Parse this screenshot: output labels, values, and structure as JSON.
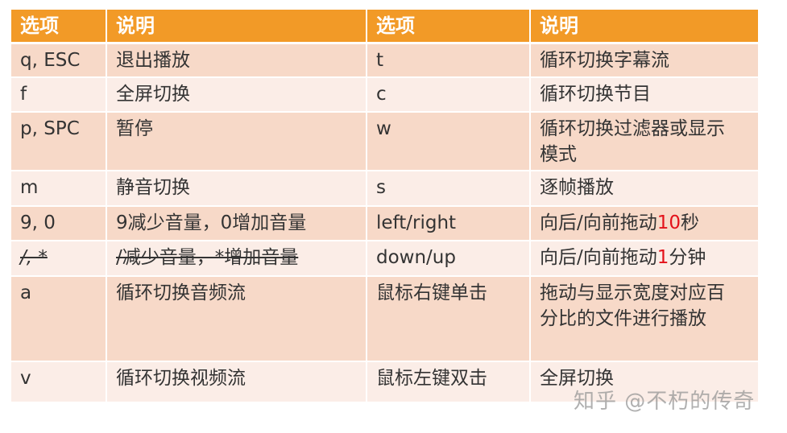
{
  "header": [
    "选项",
    "说明",
    "选项",
    "说明"
  ],
  "rows": [
    {
      "k1": "q, ESC",
      "d1": "退出播放",
      "k2": "t",
      "d2": "循环切换字幕流"
    },
    {
      "k1": "f",
      "d1": "全屏切换",
      "k2": "c",
      "d2": "循环切换节目"
    },
    {
      "k1": "p, SPC",
      "d1": "暂停",
      "k2": "w",
      "d2": "循环切换过滤器或显示模式"
    },
    {
      "k1": "m",
      "d1": "静音切换",
      "k2": "s",
      "d2": "逐帧播放"
    },
    {
      "k1": "9, 0",
      "d1": "9减少音量，0增加音量",
      "k2": "left/right",
      "d2_pre": "向后/向前拖动",
      "d2_red": "10",
      "d2_post": "秒"
    },
    {
      "k1": "/, *",
      "d1": "/减少音量，*增加音量",
      "k2": "down/up",
      "d2_pre": "向后/向前拖动",
      "d2_red": "1",
      "d2_post": "分钟"
    },
    {
      "k1": "a",
      "d1": "循环切换音频流",
      "k2": "鼠标右键单击",
      "d2": "拖动与显示宽度对应百分比的文件进行播放"
    },
    {
      "k1": "v",
      "d1": "循环切换视频流",
      "k2": "鼠标左键双击",
      "d2": "全屏切换"
    }
  ],
  "watermark": "知乎 @不朽的传奇",
  "colors": {
    "header": "#F29A27",
    "row_odd": "#F7D9C8",
    "row_even": "#FBEDE7",
    "highlight": "#E3121A"
  }
}
